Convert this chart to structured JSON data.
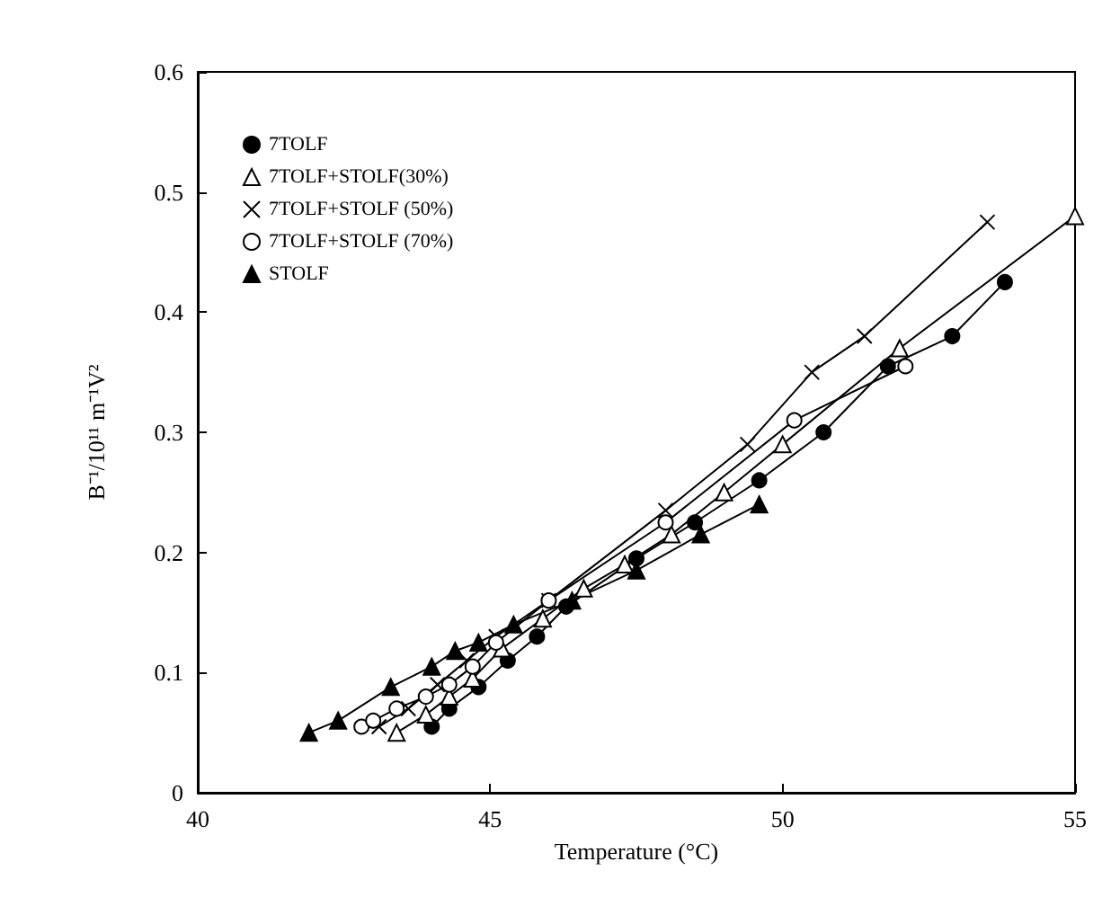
{
  "chart_data": {
    "type": "line",
    "xlabel": "Temperature (°C)",
    "ylabel": "B⁻¹/10¹¹ m⁻¹V²",
    "xlim": [
      40,
      55
    ],
    "xticks": [
      40,
      45,
      50,
      55
    ],
    "ylim": [
      0,
      0.6
    ],
    "yticks": [
      0,
      0.1,
      0.2,
      0.3,
      0.4,
      0.5,
      0.6
    ],
    "legend": "top left",
    "grid": false,
    "line_style": "solid",
    "series": [
      {
        "name": "7TOLF",
        "color": "#000000",
        "marker": "circle",
        "x": [
          44.0,
          44.3,
          44.8,
          45.3,
          45.8,
          46.3,
          47.5,
          48.5,
          49.6,
          50.7,
          51.8,
          52.9,
          53.8
        ],
        "values": [
          0.055,
          0.07,
          0.088,
          0.11,
          0.13,
          0.155,
          0.195,
          0.225,
          0.26,
          0.3,
          0.355,
          0.38,
          0.425
        ]
      },
      {
        "name": "7TOLF+STOLF(30%)",
        "color": "#000000",
        "marker": "triangle",
        "x": [
          43.4,
          43.9,
          44.3,
          44.7,
          45.2,
          45.9,
          46.6,
          47.3,
          48.1,
          49.0,
          50.0,
          52.0,
          55.0
        ],
        "values": [
          0.05,
          0.065,
          0.08,
          0.095,
          0.12,
          0.145,
          0.17,
          0.19,
          0.215,
          0.25,
          0.29,
          0.37,
          0.48
        ]
      },
      {
        "name": "7TOLF+STOLF (50%)",
        "color": "#000000",
        "marker": "cross",
        "x": [
          43.1,
          43.6,
          44.1,
          44.6,
          45.1,
          46.0,
          48.0,
          49.4,
          50.5,
          51.4,
          53.5
        ],
        "values": [
          0.055,
          0.07,
          0.09,
          0.11,
          0.13,
          0.16,
          0.235,
          0.29,
          0.35,
          0.38,
          0.475
        ]
      },
      {
        "name": "7TOLF+STOLF (70%)",
        "color": "#000000",
        "marker": "circle",
        "x": [
          42.8,
          43.0,
          43.4,
          43.9,
          44.3,
          44.7,
          45.1,
          46.0,
          48.0,
          50.2,
          52.1
        ],
        "values": [
          0.055,
          0.06,
          0.07,
          0.08,
          0.09,
          0.105,
          0.125,
          0.16,
          0.225,
          0.31,
          0.355
        ]
      },
      {
        "name": "STOLF",
        "color": "#000000",
        "marker": "triangle",
        "x": [
          41.9,
          42.4,
          43.3,
          44.0,
          44.4,
          44.8,
          45.4,
          46.4,
          47.5,
          48.6,
          49.6
        ],
        "values": [
          0.05,
          0.06,
          0.088,
          0.105,
          0.118,
          0.125,
          0.14,
          0.16,
          0.185,
          0.215,
          0.24
        ]
      }
    ]
  }
}
